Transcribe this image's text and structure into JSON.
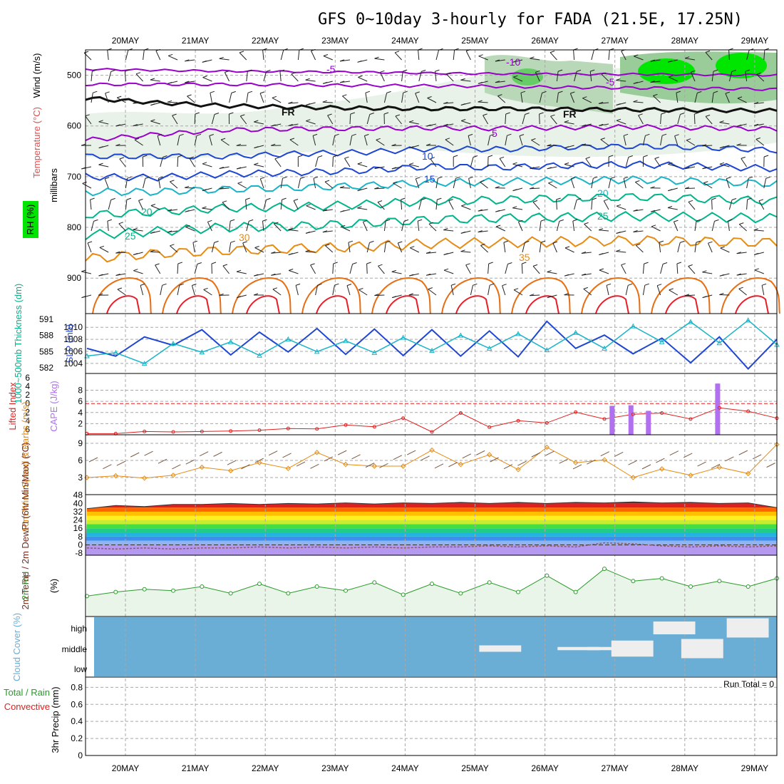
{
  "title": "GFS 0~10day 3-hourly for FADA (21.5E, 17.25N)",
  "dates": [
    "20MAY",
    "21MAY",
    "22MAY",
    "23MAY",
    "24MAY",
    "25MAY",
    "26MAY",
    "27MAY",
    "28MAY",
    "29MAY"
  ],
  "colors": {
    "purple": "#9900cc",
    "blue": "#1e46d2",
    "cyan": "#19b4c8",
    "teal": "#00b48c",
    "orange": "#e68c14",
    "darkorange": "#e66e14",
    "red": "#e61e28",
    "green": "#2a9a2a",
    "rhgreen": "#00e600",
    "cloud": "#6aaed6",
    "cape": "#b070f0",
    "li": "#e02020"
  },
  "chart_data": [
    {
      "type": "contour",
      "panel": "upper-air",
      "ylabel_parts": [
        "Wind (m/s)",
        "Temperature (°C)",
        "RH (%)",
        "millibars"
      ],
      "y_ticks": [
        500,
        600,
        700,
        800,
        900
      ],
      "ylim": [
        450,
        970
      ],
      "freezing_label": "FR",
      "isotherms": [
        {
          "label": "-10",
          "color": "purple",
          "y": [
            488,
            490,
            492,
            493,
            494,
            496,
            497,
            498,
            498,
            499,
            500
          ]
        },
        {
          "label": "-5",
          "color": "purple",
          "y": [
            518,
            518,
            518,
            519,
            520,
            521,
            522,
            524,
            525,
            526,
            528
          ]
        },
        {
          "label": "FR",
          "color": "black",
          "y": [
            545,
            554,
            560,
            563,
            565,
            566,
            566,
            567,
            568,
            569,
            570
          ]
        },
        {
          "label": "5",
          "color": "purple",
          "y": [
            628,
            617,
            608,
            606,
            605,
            604,
            605,
            603,
            602,
            604,
            606
          ]
        },
        {
          "label": "10",
          "color": "blue",
          "y": [
            660,
            660,
            660,
            655,
            652,
            645,
            646,
            642,
            640,
            643,
            648
          ]
        },
        {
          "label": "15",
          "color": "blue",
          "y": [
            700,
            702,
            695,
            692,
            688,
            680,
            682,
            678,
            676,
            680,
            684
          ]
        },
        {
          "label": "20",
          "color": "cyan",
          "y": [
            730,
            730,
            725,
            722,
            718,
            712,
            710,
            708,
            706,
            710,
            714
          ]
        },
        {
          "label": "25",
          "color": "teal",
          "y": [
            775,
            770,
            762,
            760,
            755,
            748,
            746,
            742,
            740,
            744,
            748
          ]
        },
        {
          "label": "30",
          "color": "teal",
          "y": [
            815,
            808,
            800,
            798,
            792,
            785,
            782,
            780,
            778,
            780,
            782
          ]
        },
        {
          "label": "35",
          "color": "orange",
          "y": [
            862,
            852,
            846,
            842,
            838,
            832,
            830,
            828,
            826,
            828,
            830
          ]
        }
      ],
      "contour_labels": [
        "-10",
        "-5",
        "-5",
        "FR",
        "FR",
        "5",
        "10",
        "15",
        "20",
        "20",
        "25",
        "25",
        "30",
        "35"
      ]
    },
    {
      "type": "line",
      "panel": "slp-thickness",
      "ylabel": "SLP (mb)",
      "ylabel2": "1000~500mb Thickness (dm)",
      "y_ticks_slp": [
        1004,
        1006,
        1008,
        1010
      ],
      "y_ticks_thk": [
        582,
        585,
        588,
        591
      ],
      "series": [
        {
          "name": "SLP (mb)",
          "color": "blue",
          "values": [
            1006.5,
            1005.2,
            1008.4,
            1007.0,
            1009.6,
            1005.4,
            1009.2,
            1005.9,
            1009.8,
            1005.5,
            1009.7,
            1005.3,
            1009.6,
            1005.2,
            1009.4,
            1005.1,
            1011.0,
            1006.5,
            1008.7,
            1005.6,
            1008.2,
            1004.1,
            1008.4,
            1003.1,
            1008.0
          ]
        },
        {
          "name": "1000~500mb Thickness (dm)",
          "color": "cyan",
          "values": [
            584.2,
            584.8,
            582.8,
            586.5,
            584.9,
            586.8,
            584.3,
            587.3,
            585.0,
            587.0,
            584.8,
            587.6,
            585.2,
            588.0,
            585.6,
            588.3,
            585.3,
            588.5,
            585.6,
            589.7,
            586.8,
            590.5,
            586.6,
            590.8,
            586.3
          ]
        }
      ]
    },
    {
      "type": "line+bar",
      "panel": "stability",
      "ylabel": "Lifted Index",
      "ylabel2": "CAPE (J/kg)",
      "y_ticks_li": [
        -6,
        -4,
        -2,
        0,
        2,
        4,
        6
      ],
      "y_ticks_cape": [
        2,
        4,
        6,
        8
      ],
      "series": [
        {
          "name": "Lifted Index",
          "color": "li",
          "values": [
            7,
            7,
            6.5,
            6.6,
            6.5,
            6.4,
            6.2,
            5.8,
            5.9,
            5.0,
            5.4,
            3.4,
            6.6,
            2.2,
            5.5,
            4.0,
            4.5,
            2.0,
            3.6,
            2.5,
            2.2,
            3.6,
            1.0,
            1.8,
            3.4
          ]
        },
        {
          "name": "CAPE",
          "color": "cape",
          "type": "bar",
          "values": [
            {
              "t": 6.96,
              "v": 5.2
            },
            {
              "t": 7.23,
              "v": 5.3
            },
            {
              "t": 7.48,
              "v": 4.3
            },
            {
              "t": 8.47,
              "v": 9.2
            }
          ]
        }
      ]
    },
    {
      "type": "line",
      "panel": "wind10m",
      "ylabel": "10m Wind Speed & Barbs (m/s)",
      "y_ticks": [
        3,
        6,
        9
      ],
      "series": [
        {
          "name": "10m wind speed",
          "color": "orange",
          "values": [
            3.0,
            3.3,
            2.9,
            3.4,
            4.8,
            4.2,
            5.6,
            4.6,
            7.4,
            5.3,
            5.0,
            5.0,
            7.8,
            5.3,
            7.0,
            4.4,
            8.3,
            5.6,
            6.1,
            3.0,
            4.5,
            3.4,
            4.8,
            3.7,
            8.8
          ]
        }
      ]
    },
    {
      "type": "area",
      "panel": "temperature",
      "ylabel": "2m Temp / 2m DewPt (6hr Min/Max) (°C)",
      "y_ticks": [
        -8,
        0,
        8,
        16,
        24,
        32,
        40,
        48
      ],
      "series": [
        {
          "name": "2m Temp max",
          "values": [
            35,
            38,
            37,
            39,
            39,
            40,
            39,
            40,
            39.5,
            40.5,
            39.5,
            40.5,
            40,
            41,
            40,
            41,
            40,
            41,
            40.5,
            41.5,
            40.5,
            41,
            40,
            40.5,
            36
          ]
        },
        {
          "name": "2m Temp min",
          "values": [
            33,
            28,
            33,
            29,
            31,
            29,
            30,
            29,
            31,
            29,
            31,
            29,
            31,
            29,
            32,
            29,
            31,
            29,
            31,
            29,
            31,
            29,
            31,
            29,
            34
          ]
        },
        {
          "name": "2m DewPt",
          "values": [
            -3,
            -4,
            -3,
            -4,
            -3,
            -3,
            -2,
            -3,
            -2,
            -3,
            -2,
            -3,
            -2,
            -2,
            -1,
            -2,
            -1,
            -2,
            2,
            1,
            -1,
            -2,
            -1,
            -2,
            -1
          ]
        }
      ]
    },
    {
      "type": "area",
      "panel": "rh",
      "ylabel": "2m RH",
      "units": "(%)",
      "series": [
        {
          "name": "2m RH",
          "color": "green",
          "values": [
            15,
            18,
            20,
            19,
            22,
            17,
            24,
            17,
            22,
            19,
            25,
            16,
            24,
            17,
            25,
            18,
            30,
            18,
            35,
            26,
            28,
            22,
            26,
            22,
            28
          ]
        }
      ],
      "ylim": [
        0,
        45
      ]
    },
    {
      "type": "heatmap",
      "panel": "cloud",
      "ylabel": "Cloud Cover (%)",
      "levels": [
        "high",
        "middle",
        "low"
      ],
      "cells": [
        {
          "t": 5.56,
          "level": "middle",
          "v": 10
        },
        {
          "t": 6.68,
          "level": "middle",
          "v": 5
        },
        {
          "t": 7.1,
          "level": "middle",
          "v": 5
        },
        {
          "t": 7.45,
          "level": "middle",
          "v": 25
        },
        {
          "t": 8.05,
          "level": "high",
          "v": 20
        },
        {
          "t": 8.45,
          "level": "middle",
          "v": 30
        },
        {
          "t": 9.1,
          "level": "high",
          "v": 30
        }
      ]
    },
    {
      "type": "bar",
      "panel": "precip",
      "ylabel": "3hr Precip (mm)",
      "legend": [
        "Total / Rain",
        "Convective"
      ],
      "y_ticks": [
        0,
        0.2,
        0.4,
        0.6,
        0.8
      ],
      "run_total_label": "Run Total = 0",
      "values": []
    }
  ]
}
